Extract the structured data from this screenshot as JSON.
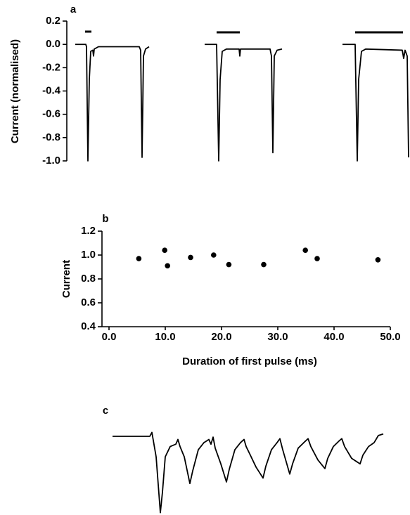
{
  "chart_data": [
    {
      "type": "line",
      "label": "a",
      "ylabel": "Current (normalised)",
      "color": "#000000",
      "xlim": [
        0,
        488
      ],
      "ylim": [
        -1.0,
        0.2
      ],
      "yticks": [
        0.2,
        {
          "value": 0,
          "label": "0.0"
        },
        -0.2,
        -0.4,
        -0.6,
        -0.8,
        {
          "value": -1,
          "label": "-1.0"
        }
      ],
      "series": [
        {
          "x": [
            12,
            27,
            28,
            30,
            32,
            34,
            37,
            38,
            39,
            45,
            103,
            105,
            107,
            109,
            112,
            117
          ],
          "values": [
            0,
            0,
            -0.02,
            -1.0,
            -0.3,
            -0.06,
            -0.05,
            -0.1,
            -0.04,
            -0.02,
            -0.02,
            -0.05,
            -0.97,
            -0.1,
            -0.04,
            -0.02
          ]
        },
        {
          "x": [
            196,
            213,
            216,
            218,
            221,
            227,
            245,
            246,
            247,
            289,
            291,
            293,
            295,
            299,
            306
          ],
          "values": [
            0,
            0,
            -1.0,
            -0.3,
            -0.06,
            -0.04,
            -0.04,
            -0.1,
            -0.04,
            -0.04,
            -0.1,
            -0.93,
            -0.1,
            -0.05,
            -0.04
          ]
        },
        {
          "x": [
            392,
            410,
            413,
            415,
            419,
            425,
            477,
            479,
            481,
            484,
            486
          ],
          "values": [
            0,
            0,
            -1.0,
            -0.3,
            -0.06,
            -0.04,
            -0.05,
            -0.12,
            -0.05,
            -0.1,
            -0.97
          ]
        }
      ]
    },
    {
      "type": "scatter",
      "label": "b",
      "ylabel": "Current",
      "xlabel": "Duration of first pulse (ms)",
      "color": "#000000",
      "xlim": [
        0,
        50
      ],
      "ylim": [
        0.4,
        1.2
      ],
      "xticks": [
        {
          "value": 0,
          "label": "0.0"
        },
        {
          "value": 10,
          "label": "10.0"
        },
        {
          "value": 20,
          "label": "20.0"
        },
        {
          "value": 30,
          "label": "30.0"
        },
        {
          "value": 40,
          "label": "40.0"
        },
        {
          "value": 50,
          "label": "50.0"
        }
      ],
      "yticks": [
        1.2,
        {
          "value": 1,
          "label": "1.0"
        },
        0.8,
        0.6,
        0.4
      ],
      "x": [
        5.3,
        9.9,
        10.4,
        14.5,
        18.6,
        21.3,
        27.5,
        34.9,
        37.0,
        47.8
      ],
      "values": [
        0.97,
        1.04,
        0.91,
        0.98,
        1.0,
        0.92,
        0.92,
        1.04,
        0.97,
        0.96
      ]
    },
    {
      "type": "line",
      "label": "c",
      "color": "#000000",
      "xlim": [
        0,
        385
      ],
      "ylim": [
        -1,
        0
      ],
      "series": [
        {
          "x": [
            0,
            53,
            56,
            62,
            68,
            71,
            75,
            82,
            90,
            93,
            96,
            102,
            110,
            114,
            122,
            130,
            137,
            140,
            143,
            146,
            154,
            162,
            166,
            174,
            182,
            187,
            190,
            196,
            204,
            214,
            218,
            226,
            234,
            238,
            242,
            252,
            256,
            264,
            272,
            278,
            282,
            292,
            302,
            306,
            314,
            322,
            326,
            330,
            340,
            352,
            356,
            364,
            372,
            378,
            385
          ],
          "values": [
            0,
            0,
            0.05,
            -0.26,
            -0.97,
            -0.71,
            -0.26,
            -0.13,
            -0.1,
            -0.04,
            -0.13,
            -0.26,
            -0.6,
            -0.44,
            -0.17,
            -0.08,
            -0.04,
            -0.1,
            -0.01,
            -0.15,
            -0.35,
            -0.58,
            -0.42,
            -0.17,
            -0.08,
            -0.04,
            -0.13,
            -0.24,
            -0.39,
            -0.53,
            -0.38,
            -0.17,
            -0.08,
            -0.03,
            -0.17,
            -0.48,
            -0.35,
            -0.15,
            -0.08,
            -0.03,
            -0.13,
            -0.3,
            -0.41,
            -0.28,
            -0.13,
            -0.06,
            -0.03,
            -0.13,
            -0.28,
            -0.35,
            -0.24,
            -0.13,
            -0.08,
            0.01,
            0.03
          ]
        }
      ]
    }
  ]
}
